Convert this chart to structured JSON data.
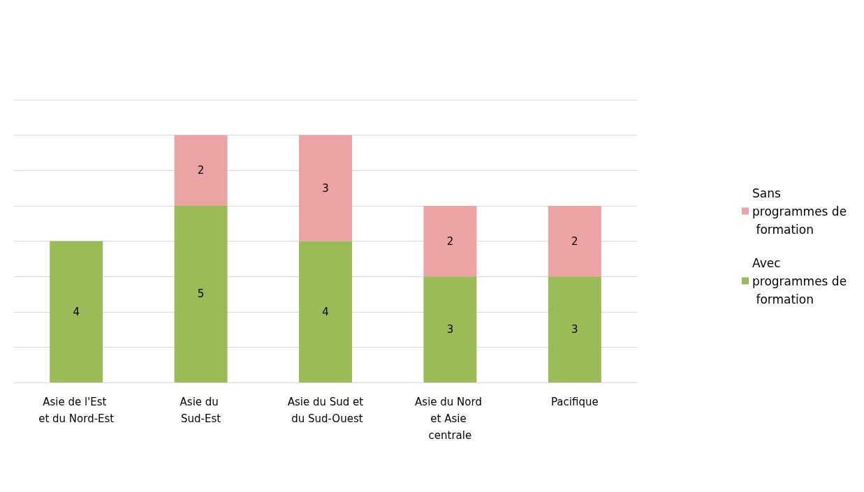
{
  "chart_data": {
    "type": "bar",
    "stacked": true,
    "categories": [
      "Asie de l'Est et du Nord-Est",
      "Asie du Sud-Est",
      "Asie du Sud et du Sud-Ouest",
      "Asie du Nord et Asie centrale",
      "Pacifique"
    ],
    "series": [
      {
        "name": "Avec programmes de formation",
        "color": "#9bbb59",
        "values": [
          4,
          5,
          4,
          3,
          3
        ]
      },
      {
        "name": "Sans programmes de formation",
        "color": "#eba3a3",
        "values": [
          null,
          2,
          3,
          2,
          2
        ]
      }
    ],
    "ylim": [
      0,
      8
    ],
    "yticks": [
      {
        "value": 0,
        "label": null
      },
      {
        "value": 1,
        "label": null
      },
      {
        "value": 2,
        "label": null
      },
      {
        "value": 3,
        "label": null
      },
      {
        "value": 4,
        "label": null
      },
      {
        "value": 5,
        "label": null
      },
      {
        "value": 6,
        "label": null
      },
      {
        "value": 7,
        "label": null
      },
      {
        "value": 8,
        "label": null
      }
    ],
    "tick_labels": "x",
    "grid": "y",
    "legend": "right",
    "data_labels": true
  }
}
